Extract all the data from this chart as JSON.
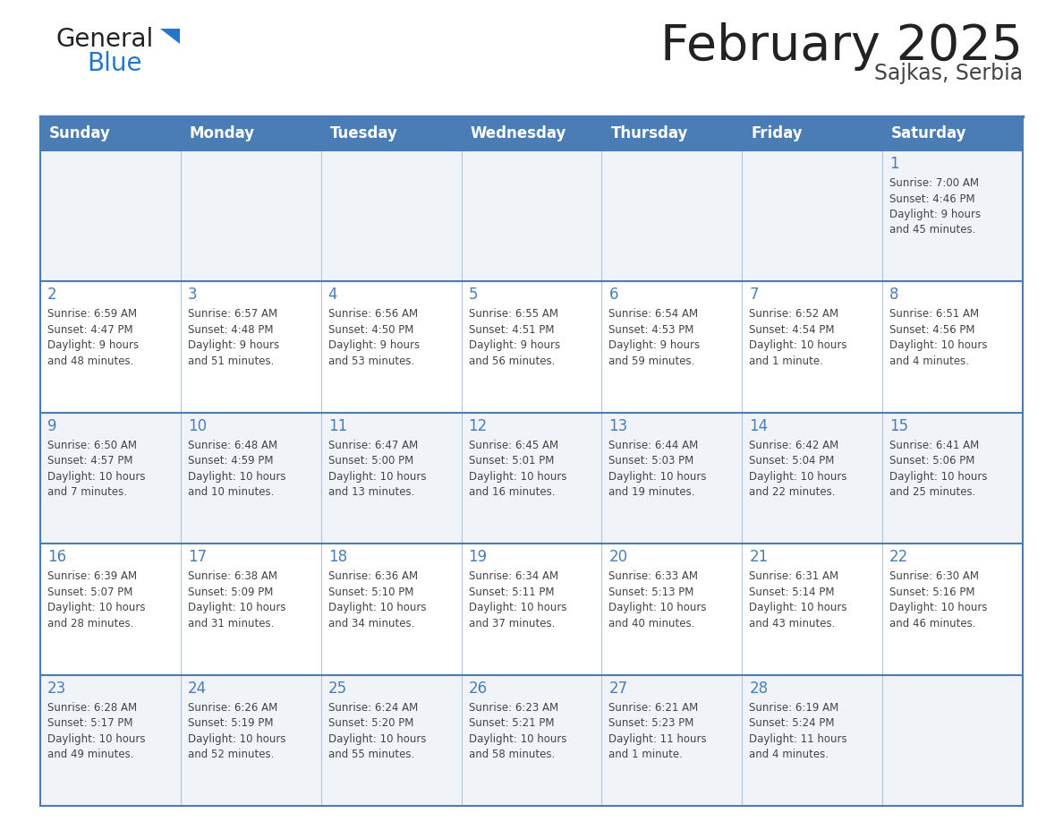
{
  "title": "February 2025",
  "subtitle": "Sajkas, Serbia",
  "days_of_week": [
    "Sunday",
    "Monday",
    "Tuesday",
    "Wednesday",
    "Thursday",
    "Friday",
    "Saturday"
  ],
  "header_bg": "#4a7db5",
  "header_text": "#ffffff",
  "cell_bg_odd": "#f0f4f8",
  "cell_bg_even": "#ffffff",
  "day_num_color": "#4a7db5",
  "text_color": "#444444",
  "border_color": "#4a7db5",
  "sep_color": "#b0c4de",
  "title_color": "#222222",
  "subtitle_color": "#444444",
  "logo_general_color": "#222222",
  "logo_blue_color": "#2277cc",
  "logo_tri_color": "#2277cc",
  "calendar_data": [
    [
      null,
      null,
      null,
      null,
      null,
      null,
      {
        "day": 1,
        "sunrise": "7:00 AM",
        "sunset": "4:46 PM",
        "daylight": "9 hours and 45 minutes."
      }
    ],
    [
      {
        "day": 2,
        "sunrise": "6:59 AM",
        "sunset": "4:47 PM",
        "daylight": "9 hours and 48 minutes."
      },
      {
        "day": 3,
        "sunrise": "6:57 AM",
        "sunset": "4:48 PM",
        "daylight": "9 hours and 51 minutes."
      },
      {
        "day": 4,
        "sunrise": "6:56 AM",
        "sunset": "4:50 PM",
        "daylight": "9 hours and 53 minutes."
      },
      {
        "day": 5,
        "sunrise": "6:55 AM",
        "sunset": "4:51 PM",
        "daylight": "9 hours and 56 minutes."
      },
      {
        "day": 6,
        "sunrise": "6:54 AM",
        "sunset": "4:53 PM",
        "daylight": "9 hours and 59 minutes."
      },
      {
        "day": 7,
        "sunrise": "6:52 AM",
        "sunset": "4:54 PM",
        "daylight": "10 hours and 1 minute."
      },
      {
        "day": 8,
        "sunrise": "6:51 AM",
        "sunset": "4:56 PM",
        "daylight": "10 hours and 4 minutes."
      }
    ],
    [
      {
        "day": 9,
        "sunrise": "6:50 AM",
        "sunset": "4:57 PM",
        "daylight": "10 hours and 7 minutes."
      },
      {
        "day": 10,
        "sunrise": "6:48 AM",
        "sunset": "4:59 PM",
        "daylight": "10 hours and 10 minutes."
      },
      {
        "day": 11,
        "sunrise": "6:47 AM",
        "sunset": "5:00 PM",
        "daylight": "10 hours and 13 minutes."
      },
      {
        "day": 12,
        "sunrise": "6:45 AM",
        "sunset": "5:01 PM",
        "daylight": "10 hours and 16 minutes."
      },
      {
        "day": 13,
        "sunrise": "6:44 AM",
        "sunset": "5:03 PM",
        "daylight": "10 hours and 19 minutes."
      },
      {
        "day": 14,
        "sunrise": "6:42 AM",
        "sunset": "5:04 PM",
        "daylight": "10 hours and 22 minutes."
      },
      {
        "day": 15,
        "sunrise": "6:41 AM",
        "sunset": "5:06 PM",
        "daylight": "10 hours and 25 minutes."
      }
    ],
    [
      {
        "day": 16,
        "sunrise": "6:39 AM",
        "sunset": "5:07 PM",
        "daylight": "10 hours and 28 minutes."
      },
      {
        "day": 17,
        "sunrise": "6:38 AM",
        "sunset": "5:09 PM",
        "daylight": "10 hours and 31 minutes."
      },
      {
        "day": 18,
        "sunrise": "6:36 AM",
        "sunset": "5:10 PM",
        "daylight": "10 hours and 34 minutes."
      },
      {
        "day": 19,
        "sunrise": "6:34 AM",
        "sunset": "5:11 PM",
        "daylight": "10 hours and 37 minutes."
      },
      {
        "day": 20,
        "sunrise": "6:33 AM",
        "sunset": "5:13 PM",
        "daylight": "10 hours and 40 minutes."
      },
      {
        "day": 21,
        "sunrise": "6:31 AM",
        "sunset": "5:14 PM",
        "daylight": "10 hours and 43 minutes."
      },
      {
        "day": 22,
        "sunrise": "6:30 AM",
        "sunset": "5:16 PM",
        "daylight": "10 hours and 46 minutes."
      }
    ],
    [
      {
        "day": 23,
        "sunrise": "6:28 AM",
        "sunset": "5:17 PM",
        "daylight": "10 hours and 49 minutes."
      },
      {
        "day": 24,
        "sunrise": "6:26 AM",
        "sunset": "5:19 PM",
        "daylight": "10 hours and 52 minutes."
      },
      {
        "day": 25,
        "sunrise": "6:24 AM",
        "sunset": "5:20 PM",
        "daylight": "10 hours and 55 minutes."
      },
      {
        "day": 26,
        "sunrise": "6:23 AM",
        "sunset": "5:21 PM",
        "daylight": "10 hours and 58 minutes."
      },
      {
        "day": 27,
        "sunrise": "6:21 AM",
        "sunset": "5:23 PM",
        "daylight": "11 hours and 1 minute."
      },
      {
        "day": 28,
        "sunrise": "6:19 AM",
        "sunset": "5:24 PM",
        "daylight": "11 hours and 4 minutes."
      },
      null
    ]
  ]
}
